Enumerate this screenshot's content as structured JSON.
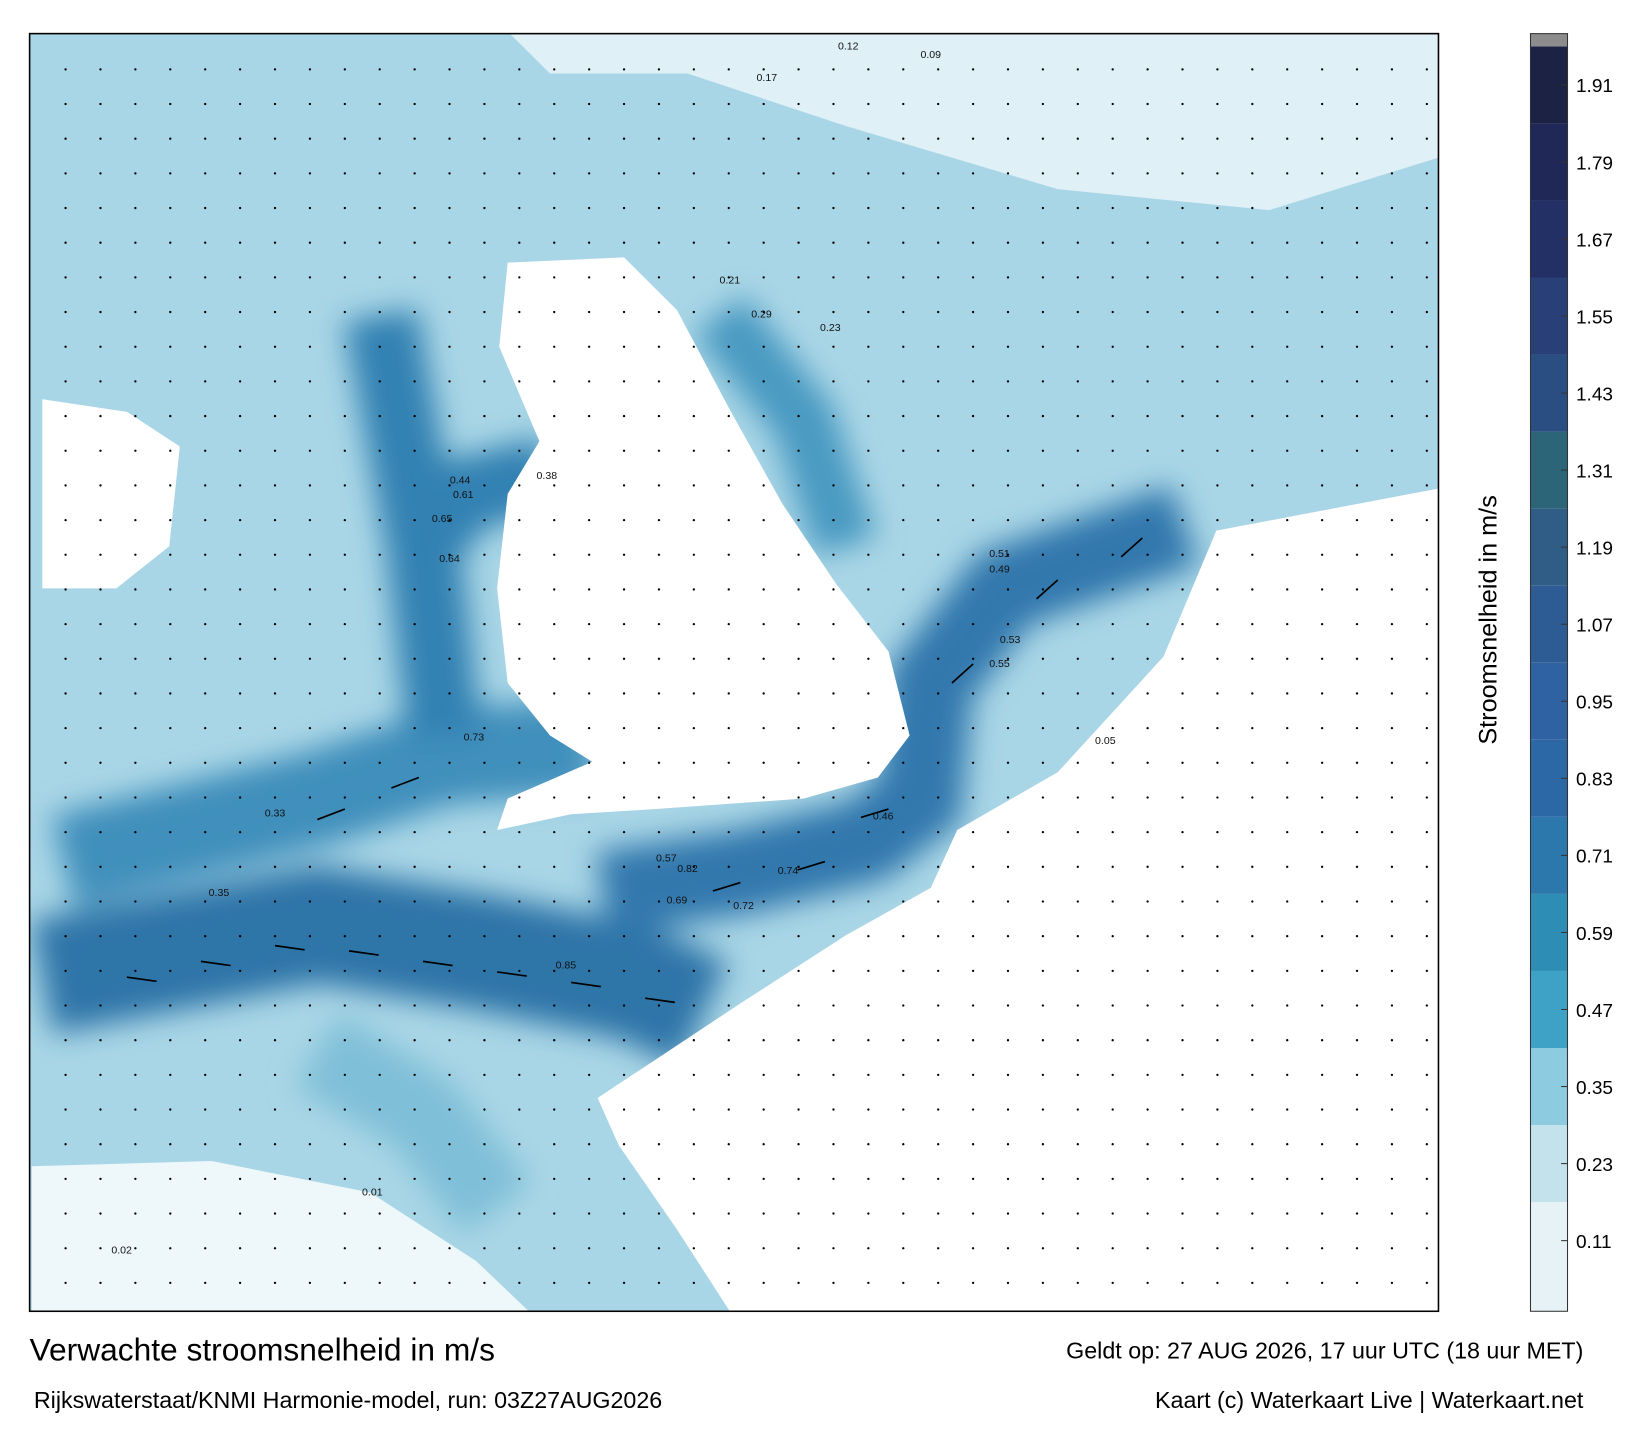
{
  "title": "Verwachte stroomsnelheid in m/s",
  "subtitle": "Rijkswaterstaat/KNMI Harmonie-model, run: 03Z27AUG2026",
  "valid_time": "Geldt op: 27 AUG 2026, 17 uur UTC (18 uur MET)",
  "credit": "Kaart (c) Waterkaart Live | Waterkaart.net",
  "colorbar": {
    "label": "Stroomsnelheid in m/s",
    "clim": [
      0,
      1.98
    ],
    "ticks": [
      0.11,
      0.23,
      0.35,
      0.47,
      0.59,
      0.71,
      0.83,
      0.95,
      1.07,
      1.19,
      1.31,
      1.43,
      1.55,
      1.67,
      1.79,
      1.91
    ],
    "colors": [
      "#e6f2f6",
      "#c4e2ec",
      "#8ccbe0",
      "#3ea2c6",
      "#2e8db5",
      "#2c78ac",
      "#2d68a6",
      "#2f62a2",
      "#2d5c95",
      "#2f5d86",
      "#2c6478",
      "#2a4e82",
      "#283f78",
      "#233066",
      "#1f2856",
      "#1c2244"
    ],
    "cap_color": "#8c8c8c"
  },
  "map_labels": [
    0.85,
    0.82,
    0.74,
    0.73,
    0.72,
    0.69,
    0.65,
    0.64,
    0.61,
    0.57,
    0.55,
    0.53,
    0.51,
    0.49,
    0.46,
    0.44,
    0.38,
    0.35,
    0.33,
    0.29,
    0.23,
    0.21,
    0.17,
    0.12,
    0.09,
    0.05,
    0.02,
    0.01
  ]
}
